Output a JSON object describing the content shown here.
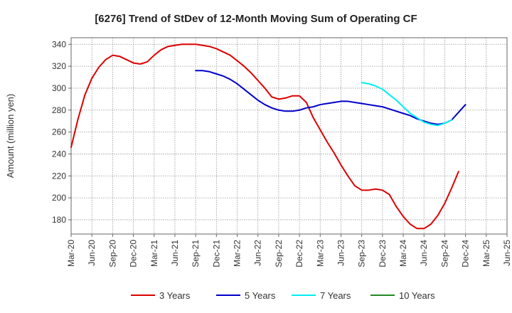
{
  "chart_data": {
    "type": "line",
    "title": "[6276]  Trend of StDev of 12-Month Moving Sum of Operating CF",
    "xlabel": "",
    "ylabel": "Amount (million yen)",
    "ylim": [
      167,
      346
    ],
    "yticks": [
      180,
      200,
      220,
      240,
      260,
      280,
      300,
      320,
      340
    ],
    "grid": true,
    "legend_position": "bottom",
    "x_tick_labels": [
      "Mar-20",
      "Jun-20",
      "Sep-20",
      "Dec-20",
      "Mar-21",
      "Jun-21",
      "Sep-21",
      "Dec-21",
      "Mar-22",
      "Jun-22",
      "Sep-22",
      "Dec-22",
      "Mar-23",
      "Jun-23",
      "Sep-23",
      "Dec-23",
      "Mar-24",
      "Jun-24",
      "Sep-24",
      "Dec-24",
      "Mar-25",
      "Jun-25"
    ],
    "series": [
      {
        "name": "3 Years",
        "color": "#dd0000",
        "start_index": 0,
        "values": [
          246,
          272,
          294,
          309,
          319,
          326,
          330,
          329,
          326,
          323,
          322,
          324,
          330,
          335,
          338,
          339,
          340,
          340,
          340,
          339,
          338,
          336,
          333,
          330,
          325,
          320,
          314,
          307,
          300,
          292,
          290,
          291,
          293,
          293,
          287,
          273,
          262,
          251,
          241,
          230,
          220,
          211,
          207,
          207,
          208,
          207,
          203,
          192,
          183,
          176,
          172,
          172,
          176,
          184,
          195,
          209,
          224
        ]
      },
      {
        "name": "5 Years",
        "color": "#0000cc",
        "start_index": 18,
        "values": [
          316,
          316,
          315,
          313,
          311,
          308,
          304,
          299,
          294,
          289,
          285,
          282,
          280,
          279,
          279,
          280,
          282,
          283,
          285,
          286,
          287,
          288,
          288,
          287,
          286,
          285,
          284,
          283,
          281,
          279,
          277,
          275,
          272,
          270,
          268,
          267,
          268,
          271,
          278,
          285
        ]
      },
      {
        "name": "7 Years",
        "color": "#00eeee",
        "start_index": 42,
        "values": [
          305,
          304,
          302,
          299,
          294,
          289,
          283,
          277,
          273,
          269,
          267,
          266,
          268,
          271
        ]
      },
      {
        "name": "10 Years",
        "color": "#228822",
        "start_index": 0,
        "values": []
      }
    ]
  }
}
